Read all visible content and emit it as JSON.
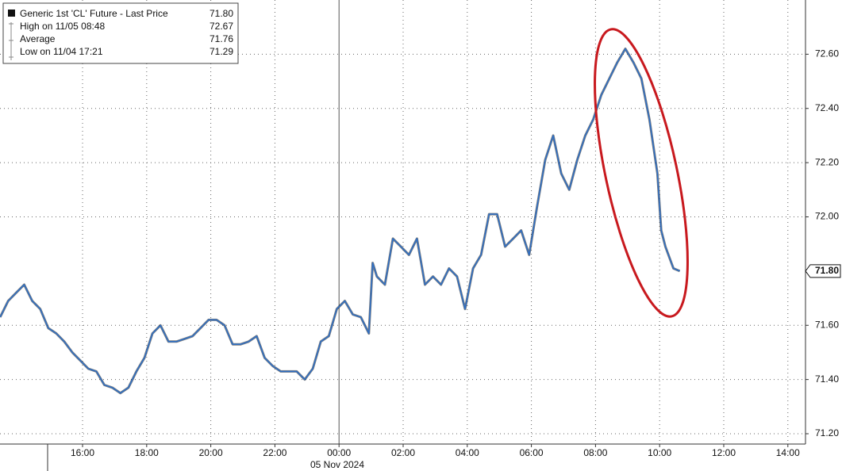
{
  "chart_data": {
    "type": "line",
    "legend": {
      "title": "Generic 1st 'CL' Future - Last Price",
      "title_value": "71.80",
      "items": [
        {
          "label": "High on 11/05 08:48",
          "value": "72.67"
        },
        {
          "label": "Average",
          "value": "71.76"
        },
        {
          "label": "Low on 11/04 17:21",
          "value": "71.29"
        }
      ]
    },
    "date_label": "05 Nov 2024",
    "last_price": {
      "value": 71.8,
      "label": "71.80"
    },
    "color": "#2f6fc4",
    "grid": true,
    "xlim": [
      13.425,
      38.55
    ],
    "ylim": [
      71.162,
      72.8
    ],
    "xticks": [
      {
        "value": 16,
        "label": "16:00"
      },
      {
        "value": 18,
        "label": "18:00"
      },
      {
        "value": 20,
        "label": "20:00"
      },
      {
        "value": 22,
        "label": "22:00"
      },
      {
        "value": 24,
        "label": "00:00"
      },
      {
        "value": 26,
        "label": "02:00"
      },
      {
        "value": 28,
        "label": "04:00"
      },
      {
        "value": 30,
        "label": "06:00"
      },
      {
        "value": 32,
        "label": "08:00"
      },
      {
        "value": 34,
        "label": "10:00"
      },
      {
        "value": 36,
        "label": "12:00"
      },
      {
        "value": 38,
        "label": "14:00"
      }
    ],
    "yticks": [
      {
        "value": 71.2,
        "label": "71.20"
      },
      {
        "value": 71.4,
        "label": "71.40"
      },
      {
        "value": 71.6,
        "label": "71.60"
      },
      {
        "value": 72,
        "label": "72.00"
      },
      {
        "value": 72.2,
        "label": "72.20"
      },
      {
        "value": 72.4,
        "label": "72.40"
      },
      {
        "value": 72.6,
        "label": "72.60"
      }
    ],
    "x": [
      13.43,
      13.68,
      13.93,
      14.18,
      14.43,
      14.68,
      14.93,
      15.18,
      15.43,
      15.68,
      15.93,
      16.18,
      16.43,
      16.68,
      16.93,
      17.18,
      17.43,
      17.68,
      17.93,
      18.18,
      18.43,
      18.68,
      18.93,
      19.18,
      19.43,
      19.68,
      19.93,
      20.18,
      20.43,
      20.68,
      20.93,
      21.18,
      21.43,
      21.68,
      21.93,
      22.18,
      22.43,
      22.68,
      22.93,
      23.18,
      23.43,
      23.68,
      23.93,
      24.18,
      24.43,
      24.68,
      24.93,
      25.05,
      25.18,
      25.43,
      25.68,
      25.93,
      26.18,
      26.43,
      26.68,
      26.93,
      27.18,
      27.43,
      27.68,
      27.93,
      28.18,
      28.43,
      28.68,
      28.93,
      29.18,
      29.43,
      29.68,
      29.93,
      30.18,
      30.43,
      30.68,
      30.93,
      31.18,
      31.43,
      31.68,
      31.93,
      32.18,
      32.43,
      32.68,
      32.93,
      33.18,
      33.43,
      33.68,
      33.93,
      34.05,
      34.18,
      34.43,
      34.63
    ],
    "values": [
      71.63,
      71.69,
      71.72,
      71.75,
      71.69,
      71.66,
      71.59,
      71.57,
      71.54,
      71.5,
      71.47,
      71.44,
      71.43,
      71.38,
      71.37,
      71.35,
      71.37,
      71.43,
      71.48,
      71.57,
      71.6,
      71.54,
      71.54,
      71.55,
      71.56,
      71.59,
      71.62,
      71.62,
      71.6,
      71.53,
      71.53,
      71.54,
      71.56,
      71.48,
      71.45,
      71.43,
      71.43,
      71.43,
      71.4,
      71.44,
      71.54,
      71.56,
      71.66,
      71.69,
      71.64,
      71.63,
      71.57,
      71.83,
      71.78,
      71.75,
      71.92,
      71.89,
      71.86,
      71.92,
      71.75,
      71.78,
      71.75,
      71.81,
      71.78,
      71.66,
      71.81,
      71.86,
      72.01,
      72.01,
      71.89,
      71.92,
      71.95,
      71.86,
      72.04,
      72.21,
      72.3,
      72.16,
      72.1,
      72.21,
      72.3,
      72.36,
      72.45,
      72.51,
      72.57,
      72.62,
      72.57,
      72.51,
      72.36,
      72.16,
      71.95,
      71.89,
      71.81,
      71.8
    ]
  }
}
